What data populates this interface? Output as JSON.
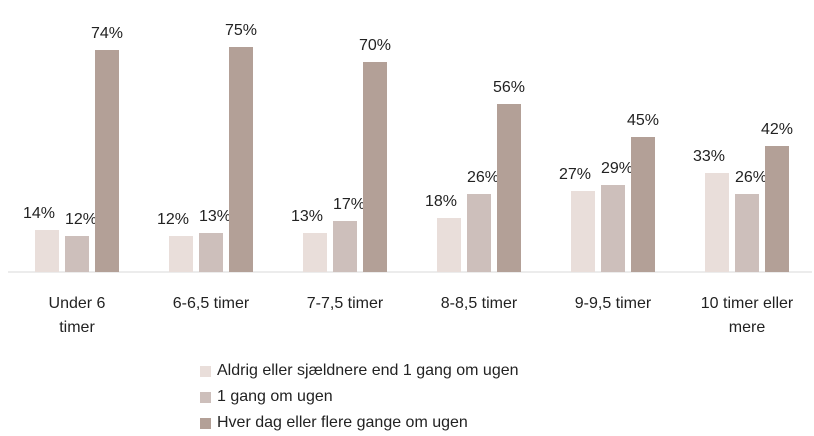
{
  "chart_data": {
    "type": "bar",
    "categories": [
      "Under 6 timer",
      "6-6,5 timer",
      "7-7,5 timer",
      "8-8,5 timer",
      "9-9,5 timer",
      "10 timer eller mere"
    ],
    "series": [
      {
        "name": "Aldrig eller sjældnere end 1 gang om ugen",
        "color": "#e9deda",
        "values": [
          14,
          12,
          13,
          18,
          27,
          33
        ]
      },
      {
        "name": "1 gang om ugen",
        "color": "#cdbfbb",
        "values": [
          12,
          13,
          17,
          26,
          29,
          26
        ]
      },
      {
        "name": "Hver dag eller flere gange om ugen",
        "color": "#b3a097",
        "values": [
          74,
          75,
          70,
          56,
          45,
          42
        ]
      }
    ],
    "value_labels": [
      [
        "14%",
        "12%",
        "13%",
        "18%",
        "27%",
        "33%"
      ],
      [
        "12%",
        "13%",
        "17%",
        "26%",
        "29%",
        "26%"
      ],
      [
        "74%",
        "75%",
        "70%",
        "56%",
        "45%",
        "42%"
      ]
    ],
    "ylim": [
      0,
      90
    ]
  }
}
